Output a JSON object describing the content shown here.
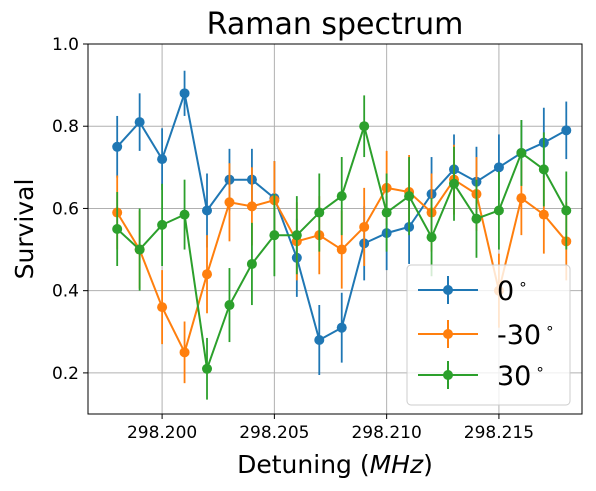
{
  "chart_data": {
    "type": "line",
    "title": "Raman spectrum",
    "xlabel_prefix": "Detuning (",
    "xlabel_unit": "MHz",
    "xlabel_suffix": ")",
    "ylabel": "Survival",
    "xlim": [
      298.1967,
      298.2187
    ],
    "ylim": [
      0.1,
      1.0
    ],
    "xticks": [
      298.2,
      298.205,
      298.21,
      298.215
    ],
    "xtick_labels": [
      "298.200",
      "298.205",
      "298.210",
      "298.215"
    ],
    "yticks": [
      0.2,
      0.4,
      0.6,
      0.8,
      1.0
    ],
    "ytick_labels": [
      "0.2",
      "0.4",
      "0.6",
      "0.8",
      "1.0"
    ],
    "grid": true,
    "legend_position": "lower-right",
    "x": [
      298.198,
      298.199,
      298.2,
      298.201,
      298.202,
      298.203,
      298.204,
      298.205,
      298.206,
      298.207,
      298.208,
      298.209,
      298.21,
      298.211,
      298.212,
      298.213,
      298.214,
      298.215,
      298.216,
      298.217,
      298.218
    ],
    "series": [
      {
        "name": "0",
        "color": "#1f77b4",
        "values": [
          0.75,
          0.81,
          0.72,
          0.88,
          0.595,
          0.67,
          0.67,
          0.625,
          0.48,
          0.28,
          0.31,
          0.515,
          0.54,
          0.555,
          0.635,
          0.695,
          0.665,
          0.7,
          0.735,
          0.76,
          0.79
        ],
        "errors": [
          0.075,
          0.07,
          0.075,
          0.055,
          0.09,
          0.075,
          0.075,
          0.09,
          0.095,
          0.085,
          0.085,
          0.09,
          0.09,
          0.09,
          0.09,
          0.085,
          0.085,
          0.08,
          0.08,
          0.085,
          0.07
        ]
      },
      {
        "name": "-30",
        "color": "#ff7f0e",
        "values": [
          0.59,
          0.5,
          0.36,
          0.25,
          0.44,
          0.615,
          0.605,
          0.62,
          0.52,
          0.535,
          0.5,
          0.555,
          0.65,
          0.64,
          0.59,
          0.67,
          0.635,
          0.4,
          0.625,
          0.585,
          0.52
        ],
        "errors": [
          0.09,
          0.095,
          0.09,
          0.075,
          0.095,
          0.095,
          0.095,
          0.095,
          0.095,
          0.095,
          0.095,
          0.095,
          0.09,
          0.09,
          0.095,
          0.085,
          0.09,
          0.09,
          0.09,
          0.095,
          0.095
        ]
      },
      {
        "name": "30",
        "color": "#2ca02c",
        "values": [
          0.55,
          0.5,
          0.56,
          0.585,
          0.21,
          0.365,
          0.465,
          0.535,
          0.535,
          0.59,
          0.63,
          0.8,
          0.59,
          0.63,
          0.53,
          0.66,
          0.575,
          0.595,
          0.735,
          0.695,
          0.595
        ]
      }
    ],
    "series_30_errors": [
      0.09,
      0.1,
      0.1,
      0.085,
      0.075,
      0.09,
      0.1,
      0.1,
      0.095,
      0.095,
      0.095,
      0.075,
      0.095,
      0.095,
      0.095,
      0.09,
      0.095,
      0.095,
      0.08,
      0.09,
      0.095
    ],
    "legend_entries": [
      "0",
      "-30",
      "30"
    ],
    "legend_degree_symbol": "∘"
  }
}
